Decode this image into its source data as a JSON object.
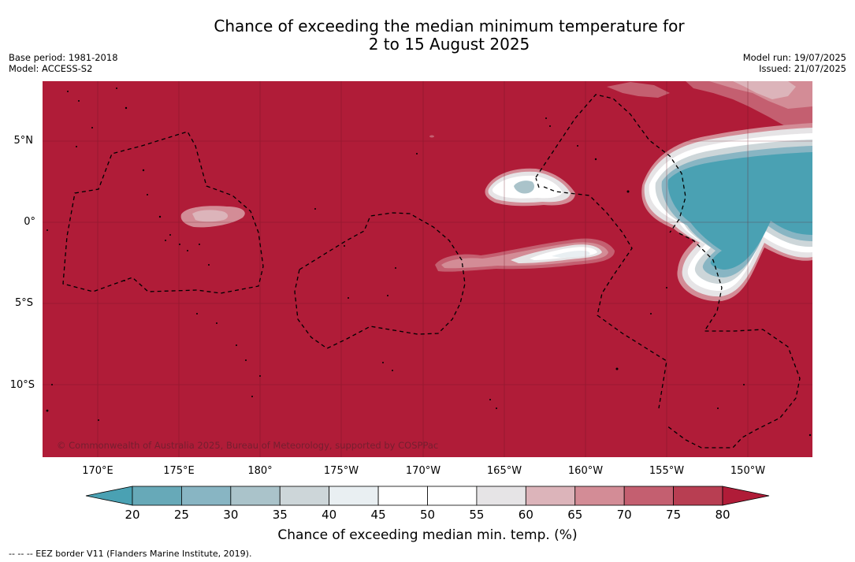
{
  "title": {
    "line1": "Chance of exceeding the median minimum temperature for",
    "line2": "2 to 15 August 2025"
  },
  "meta_left": {
    "base_period": "Base period: 1981-2018",
    "model": "Model: ACCESS-S2"
  },
  "meta_right": {
    "model_run": "Model run: 19/07/2025",
    "issued": "Issued: 21/07/2025"
  },
  "map": {
    "lat_labels": [
      "5°N",
      "0°",
      "5°S",
      "10°S"
    ],
    "lon_labels": [
      "170°E",
      "175°E",
      "180°",
      "175°W",
      "170°W",
      "165°W",
      "160°W",
      "155°W",
      "150°W"
    ],
    "copyright": "© Commonwealth of Australia 2025, Bureau of Meteorology, supported by COSPPac",
    "background_color": "#b01c38"
  },
  "colorbar": {
    "ticks": [
      "20",
      "25",
      "30",
      "35",
      "40",
      "45",
      "50",
      "55",
      "60",
      "65",
      "70",
      "75",
      "80"
    ],
    "colors": [
      "#67a9b8",
      "#88b5c3",
      "#aac3ca",
      "#cdd6d9",
      "#e9eff2",
      "#ffffff",
      "#ffffff",
      "#e6e4e6",
      "#dcb4ba",
      "#d38c96",
      "#c45f70",
      "#b83e52"
    ],
    "under_color": "#4aa1b3",
    "over_color": "#b01c38",
    "label": "Chance of exceeding median min. temp. (%)"
  },
  "footnote": "--  --  -- EEZ border V11 (Flanders Marine Institute, 2019)."
}
